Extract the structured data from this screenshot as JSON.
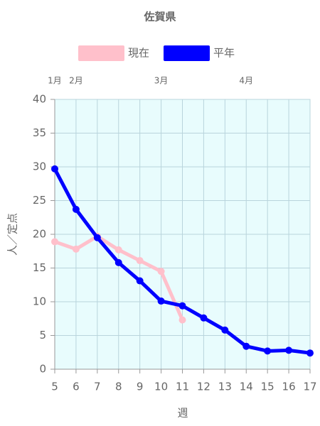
{
  "chart_data": {
    "type": "line",
    "title": "佐賀県",
    "x_label": "週",
    "y_label": "人／定点",
    "x": [
      5,
      6,
      7,
      8,
      9,
      10,
      11,
      12,
      13,
      14,
      15,
      16,
      17
    ],
    "series": [
      {
        "name": "現在",
        "color": "#ffc0cb",
        "values": [
          18.9,
          17.8,
          19.7,
          17.7,
          16.1,
          14.5,
          7.3,
          null,
          null,
          null,
          null,
          null,
          null
        ]
      },
      {
        "name": "平年",
        "color": "#0000ff",
        "values": [
          29.7,
          23.7,
          19.5,
          15.8,
          13.1,
          10.1,
          9.4,
          7.6,
          5.8,
          3.4,
          2.7,
          2.8,
          2.4
        ]
      }
    ],
    "xlim": [
      5,
      17
    ],
    "xticks": [
      5,
      6,
      7,
      8,
      9,
      10,
      11,
      12,
      13,
      14,
      15,
      16,
      17
    ],
    "ylim": [
      0,
      40
    ],
    "yticks": [
      0,
      5,
      10,
      15,
      20,
      25,
      30,
      35,
      40
    ],
    "months": [
      {
        "value": 5,
        "label": "1月"
      },
      {
        "value": 6,
        "label": "2月"
      },
      {
        "value": 10,
        "label": "3月"
      },
      {
        "value": 14,
        "label": "4月"
      }
    ],
    "grid": true,
    "background": "#e8fcfd"
  }
}
